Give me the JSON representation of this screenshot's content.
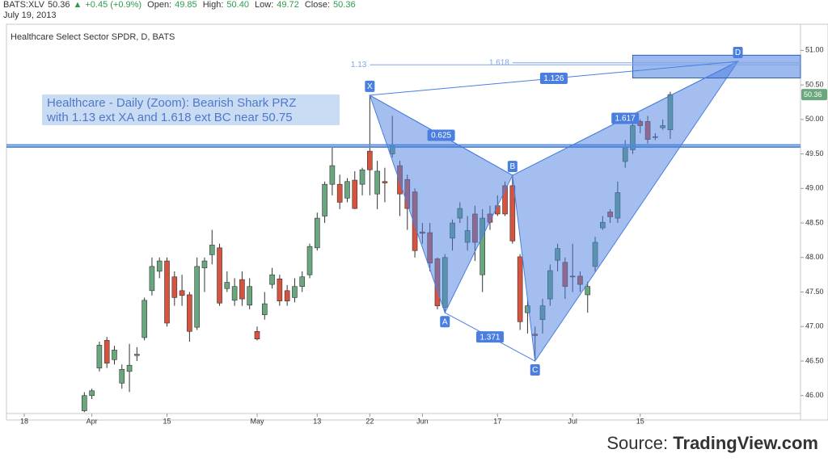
{
  "header": {
    "symbol": "BATS:XLV",
    "quote": "50.36",
    "change": "+0.45 (+0.9%)",
    "open_label": "Open:",
    "open": "49.85",
    "high_label": "High:",
    "high": "50.40",
    "low_label": "Low:",
    "low": "49.72",
    "close_label": "Close:",
    "close": "50.36",
    "date": "July 19, 2013"
  },
  "chart_data": {
    "type": "candlestick",
    "title": "Healthcare Select Sector SPDR, D, BATS",
    "annotation": [
      "Healthcare - Daily (Zoom): Bearish Shark PRZ",
      "with 1.13 ext XA and 1.618 ext BC near 50.75"
    ],
    "categories": [
      "18",
      null,
      null,
      null,
      null,
      null,
      null,
      null,
      null,
      "Apr",
      null,
      null,
      null,
      null,
      null,
      null,
      null,
      null,
      null,
      "15",
      null,
      null,
      null,
      null,
      null,
      null,
      null,
      null,
      null,
      null,
      null,
      "May",
      null,
      null,
      null,
      null,
      null,
      null,
      null,
      "13",
      null,
      null,
      null,
      null,
      null,
      null,
      "22",
      null,
      null,
      null,
      null,
      null,
      null,
      "Jun",
      null,
      null,
      null,
      null,
      null,
      null,
      null,
      null,
      null,
      "17",
      null,
      null,
      null,
      null,
      null,
      null,
      null,
      null,
      null,
      "Jul",
      null,
      null,
      null,
      null,
      null,
      null,
      null,
      null,
      "15",
      null,
      null,
      null,
      null,
      null,
      null,
      null,
      null,
      null,
      null,
      null,
      null,
      null,
      null,
      null,
      null,
      null,
      null,
      null,
      null,
      null
    ],
    "open": [
      null,
      null,
      null,
      null,
      null,
      null,
      null,
      null,
      45.78,
      46.0,
      46.4,
      46.8,
      46.52,
      46.18,
      46.35,
      46.58,
      46.84,
      47.52,
      47.8,
      47.95,
      47.72,
      47.52,
      47.46,
      46.99,
      47.85,
      48.04,
      48.14,
      47.55,
      47.38,
      47.68,
      47.31,
      46.93,
      47.17,
      47.61,
      47.69,
      47.52,
      47.42,
      47.58,
      47.75,
      48.14,
      48.6,
      49.06,
      49.06,
      48.86,
      49.12,
      49.06,
      49.54,
      48.92,
      49.1,
      49.5,
      49.33,
      49.13,
      48.95,
      48.37,
      48.36,
      47.98,
      47.28,
      48.28,
      48.57,
      48.22,
      48.63,
      47.75,
      48.63,
      48.75,
      49.04,
      49.04,
      48.01,
      47.2,
      46.89,
      47.1,
      47.4,
      47.96,
      47.93,
      47.73,
      47.73,
      47.46,
      47.87,
      48.43,
      48.66,
      48.57,
      49.39,
      49.56,
      49.97,
      49.97,
      49.74,
      49.88,
      49.85,
      null,
      null,
      null,
      null,
      null,
      null,
      null,
      null,
      null,
      null,
      null,
      null,
      null,
      null,
      null,
      null,
      null
    ],
    "high": [
      null,
      null,
      null,
      null,
      null,
      null,
      null,
      null,
      46.05,
      46.1,
      46.78,
      46.85,
      46.72,
      46.45,
      46.75,
      46.7,
      47.42,
      48.0,
      48.0,
      48.0,
      47.8,
      47.75,
      47.5,
      48.0,
      48.0,
      48.4,
      48.2,
      47.8,
      47.7,
      47.8,
      47.7,
      47.0,
      47.5,
      47.85,
      47.75,
      47.6,
      47.7,
      47.8,
      48.2,
      48.65,
      49.1,
      49.6,
      49.2,
      49.15,
      49.25,
      49.3,
      50.35,
      49.4,
      49.3,
      50.05,
      49.4,
      49.2,
      49.0,
      48.5,
      48.5,
      48.0,
      48.05,
      48.55,
      48.8,
      48.6,
      48.75,
      48.7,
      48.75,
      48.9,
      49.1,
      49.2,
      48.05,
      47.4,
      47.0,
      47.4,
      47.9,
      48.2,
      48.0,
      48.2,
      47.8,
      47.65,
      48.3,
      48.6,
      48.7,
      49.1,
      49.7,
      50.0,
      50.0,
      50.05,
      49.8,
      50.0,
      50.4,
      null,
      null,
      null,
      null,
      null,
      null,
      null,
      null,
      null,
      null,
      null,
      null,
      null,
      null,
      null,
      null,
      null
    ],
    "low": [
      null,
      null,
      null,
      null,
      null,
      null,
      null,
      null,
      45.76,
      45.95,
      46.35,
      46.4,
      46.45,
      46.1,
      46.05,
      46.5,
      46.8,
      47.45,
      47.7,
      47.0,
      47.3,
      47.3,
      46.78,
      46.95,
      47.5,
      47.9,
      47.3,
      47.5,
      47.3,
      47.3,
      47.25,
      46.8,
      47.1,
      47.55,
      47.3,
      47.3,
      47.35,
      47.5,
      47.7,
      48.1,
      48.5,
      48.9,
      48.7,
      48.8,
      48.7,
      48.9,
      48.9,
      48.7,
      48.8,
      49.45,
      48.6,
      48.4,
      48.0,
      48.2,
      47.8,
      47.25,
      47.2,
      48.1,
      48.5,
      48.1,
      47.95,
      47.5,
      48.4,
      48.6,
      48.6,
      48.2,
      46.95,
      46.9,
      46.5,
      46.9,
      47.3,
      47.8,
      47.4,
      47.5,
      47.5,
      47.2,
      47.8,
      48.4,
      48.5,
      48.5,
      49.3,
      49.5,
      49.8,
      49.65,
      49.7,
      49.85,
      49.72,
      null,
      null,
      null,
      null,
      null,
      null,
      null,
      null,
      null,
      null,
      null,
      null,
      null,
      null,
      null,
      null,
      null
    ],
    "close": [
      null,
      null,
      null,
      null,
      null,
      null,
      null,
      null,
      46.0,
      46.07,
      46.73,
      46.47,
      46.66,
      46.38,
      46.44,
      46.6,
      47.38,
      47.87,
      47.95,
      47.05,
      47.42,
      47.45,
      46.93,
      47.87,
      47.95,
      48.18,
      47.34,
      47.64,
      47.58,
      47.4,
      47.58,
      46.82,
      47.33,
      47.75,
      47.37,
      47.37,
      47.58,
      47.72,
      48.16,
      48.57,
      49.06,
      49.33,
      48.8,
      49.1,
      48.71,
      49.27,
      49.27,
      49.25,
      49.08,
      49.62,
      48.92,
      48.71,
      48.1,
      48.35,
      47.92,
      47.3,
      48.0,
      48.5,
      48.71,
      48.39,
      48.22,
      48.57,
      48.51,
      48.63,
      48.63,
      48.24,
      47.07,
      47.3,
      46.87,
      47.3,
      47.81,
      48.13,
      47.58,
      47.72,
      47.61,
      47.58,
      48.22,
      48.51,
      48.59,
      48.94,
      49.59,
      49.91,
      49.91,
      49.71,
      49.75,
      49.91,
      50.36,
      null,
      null,
      null,
      null,
      null,
      null,
      null,
      null,
      null,
      null,
      null,
      null,
      null,
      null,
      null,
      null,
      null
    ],
    "up_color": "#6aa77f",
    "down_color": "#d5533f",
    "ylim": [
      45.74,
      51.32
    ],
    "yticks": [
      {
        "value": 46,
        "label": "46.00"
      },
      {
        "value": 46.5,
        "label": "46.50"
      },
      {
        "value": 47,
        "label": "47.00"
      },
      {
        "value": 47.5,
        "label": "47.50"
      },
      {
        "value": 48,
        "label": "48.00"
      },
      {
        "value": 48.5,
        "label": "48.50"
      },
      {
        "value": 49,
        "label": "49.00"
      },
      {
        "value": 49.5,
        "label": "49.50"
      },
      {
        "value": 50,
        "label": "50.00"
      },
      {
        "value": 50.5,
        "label": "50.50"
      },
      {
        "value": 51,
        "label": "51.00"
      }
    ],
    "pattern": {
      "color": "#4a7fe0",
      "points": [
        {
          "label": "X",
          "x": 46,
          "y": 50.35
        },
        {
          "label": "A",
          "x": 56,
          "y": 47.2
        },
        {
          "label": "B",
          "x": 65,
          "y": 49.19
        },
        {
          "label": "C",
          "x": 68,
          "y": 46.5
        },
        {
          "label": "D",
          "x": 95,
          "y": 50.84
        }
      ],
      "ratios": [
        {
          "label": "0.625",
          "from": "X",
          "to": "B"
        },
        {
          "label": "1.371",
          "from": "A",
          "to": "C"
        },
        {
          "label": "1.617",
          "from": "B",
          "to": "D"
        },
        {
          "label": "1.126",
          "from": "X",
          "to": "D"
        }
      ],
      "levels": [
        {
          "label": "1.13",
          "value": 50.79,
          "from": "X"
        },
        {
          "label": "1.618",
          "value": 50.82,
          "from": "B"
        }
      ]
    },
    "hlines": [
      49.63,
      49.6
    ],
    "zone": {
      "from": 50.6,
      "to": 50.93,
      "start": 81
    }
  },
  "source_label": "Source:",
  "source": "TradingView.com"
}
